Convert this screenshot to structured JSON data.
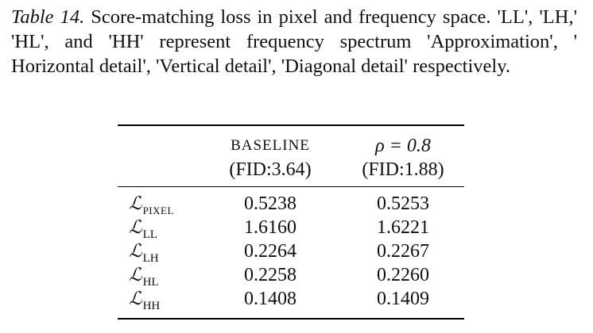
{
  "caption": {
    "label": "Table 14.",
    "text": "Score-matching loss in pixel and frequency space. 'LL', 'LH,' 'HL', and 'HH' represent frequency spectrum 'Approximation', ' Horizontal detail', 'Vertical detail', 'Diagonal detail' respectively."
  },
  "table": {
    "headers": [
      {
        "line1": "BASELINE",
        "line2": "(FID:3.64)"
      },
      {
        "line1": "ρ = 0.8",
        "line2": "(FID:1.88)"
      }
    ],
    "rows": [
      {
        "symbol": "ℒ",
        "sub": "PIXEL",
        "baseline": "0.5238",
        "rho": "0.5253"
      },
      {
        "symbol": "ℒ",
        "sub": "LL",
        "baseline": "1.6160",
        "rho": "1.6221"
      },
      {
        "symbol": "ℒ",
        "sub": "LH",
        "baseline": "0.2264",
        "rho": "0.2267"
      },
      {
        "symbol": "ℒ",
        "sub": "HL",
        "baseline": "0.2258",
        "rho": "0.2260"
      },
      {
        "symbol": "ℒ",
        "sub": "HH",
        "baseline": "0.1408",
        "rho": "0.1409"
      }
    ]
  }
}
